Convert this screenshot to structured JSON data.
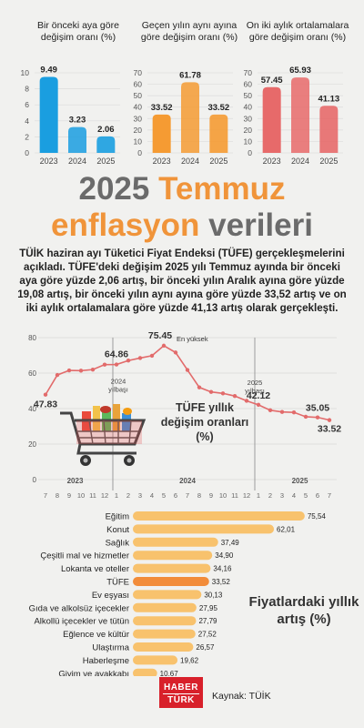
{
  "mini_charts": [
    {
      "title": "Bir önceki aya göre değişim oranı (%)",
      "categories": [
        "2023",
        "2024",
        "2025"
      ],
      "values": [
        9.49,
        3.23,
        2.06
      ],
      "value_labels": [
        "9.49",
        "3.23",
        "2.06"
      ],
      "ylim": [
        0,
        10
      ],
      "yticks": [
        "0",
        "2",
        "4",
        "6",
        "8",
        "10"
      ],
      "color": "#1a9ee0",
      "light": "#aedcf5"
    },
    {
      "title": "Geçen yılın aynı ayına göre değişim oranı (%)",
      "categories": [
        "2023",
        "2024",
        "2025"
      ],
      "values": [
        33.52,
        61.78,
        33.52
      ],
      "value_labels": [
        "33.52",
        "61.78",
        "33.52"
      ],
      "ylim": [
        0,
        70
      ],
      "yticks": [
        "0",
        "10",
        "20",
        "30",
        "40",
        "50",
        "60",
        "70"
      ],
      "color": "#f59b33",
      "light": "#fbd5a5"
    },
    {
      "title": "On iki aylık ortalamalara göre değişim oranı (%)",
      "categories": [
        "2023",
        "2024",
        "2025"
      ],
      "values": [
        57.45,
        65.93,
        41.13
      ],
      "value_labels": [
        "57.45",
        "65.93",
        "41.13"
      ],
      "ylim": [
        0,
        70
      ],
      "yticks": [
        "0",
        "10",
        "20",
        "30",
        "40",
        "50",
        "60",
        "70"
      ],
      "color": "#e76a6a",
      "light": "#f3b3b3"
    }
  ],
  "headline": {
    "line1_gray": "2025",
    "line1_orange": "Temmuz",
    "line2_orange": "enflasyon",
    "line2_gray": "verileri"
  },
  "lead": "TÜİK haziran ayı Tüketici Fiyat Endeksi (TÜFE) gerçekleşmelerini açıkladı. TÜFE'deki değişim 2025 yılı Temmuz ayında bir önceki aya göre yüzde 2,06 artış, bir önceki yılın Aralık ayına göre yüzde 19,08 artış, bir önceki yılın aynı ayına göre yüzde 33,52 artış ve on iki aylık ortalamalara göre yüzde 41,13 artış olarak gerçekleşti.",
  "chart_data": [
    {
      "type": "line",
      "title": "TÜFE yıllık değişim oranları (%)",
      "x": [
        "7",
        "8",
        "9",
        "10",
        "11",
        "12",
        "1",
        "2",
        "3",
        "4",
        "5",
        "6",
        "7",
        "8",
        "9",
        "10",
        "11",
        "12",
        "1",
        "2",
        "3",
        "4",
        "5",
        "6",
        "7"
      ],
      "years": [
        "2023",
        "2024",
        "2025"
      ],
      "values": [
        47.83,
        58.94,
        61.53,
        61.36,
        61.98,
        64.77,
        64.86,
        67.07,
        68.5,
        69.8,
        75.45,
        71.6,
        61.78,
        51.97,
        49.38,
        48.58,
        47.09,
        44.38,
        42.12,
        39.05,
        38.1,
        37.86,
        35.41,
        35.05,
        33.52
      ],
      "labels": [
        {
          "i": 0,
          "text": "47.83"
        },
        {
          "i": 6,
          "text": "64.86"
        },
        {
          "i": 10,
          "text": "75.45"
        },
        {
          "i": 18,
          "text": "42.12"
        },
        {
          "i": 23,
          "text": "35.05"
        },
        {
          "i": 24,
          "text": "33.52"
        }
      ],
      "annotations": {
        "peak": "En yüksek",
        "y2024": "2024\nyılbaşı",
        "y2025": "2025\nyılbaşı"
      },
      "ylim": [
        0,
        80
      ],
      "yticks": [
        "0",
        "20",
        "40",
        "60",
        "80"
      ],
      "color": "#e26b6b"
    },
    {
      "type": "bar",
      "title": "Fiyatlardaki yıllık artış (%)",
      "categories": [
        "Eğitim",
        "Konut",
        "Sağlık",
        "Çeşitli mal ve hizmetler",
        "Lokanta ve oteller",
        "TÜFE",
        "Ev eşyası",
        "Gıda ve alkolsüz içecekler",
        "Alkollü içecekler ve tütün",
        "Eğlence ve kültür",
        "Ulaştırma",
        "Haberleşme",
        "Giyim ve ayakkabı"
      ],
      "values": [
        75.54,
        62.01,
        37.49,
        34.9,
        34.16,
        33.52,
        30.13,
        27.95,
        27.79,
        27.52,
        26.57,
        19.62,
        10.67
      ],
      "value_labels": [
        "75,54",
        "62,01",
        "37,49",
        "34,90",
        "34,16",
        "33,52",
        "30,13",
        "27,95",
        "27,79",
        "27,52",
        "26,57",
        "19,62",
        "10,67"
      ],
      "highlight_index": 5,
      "color": "#f8c26d",
      "highlight_color": "#f28c3a"
    }
  ],
  "source": "Kaynak: TÜİK",
  "logo": {
    "line1": "HABER",
    "line2": "TÜRK"
  }
}
